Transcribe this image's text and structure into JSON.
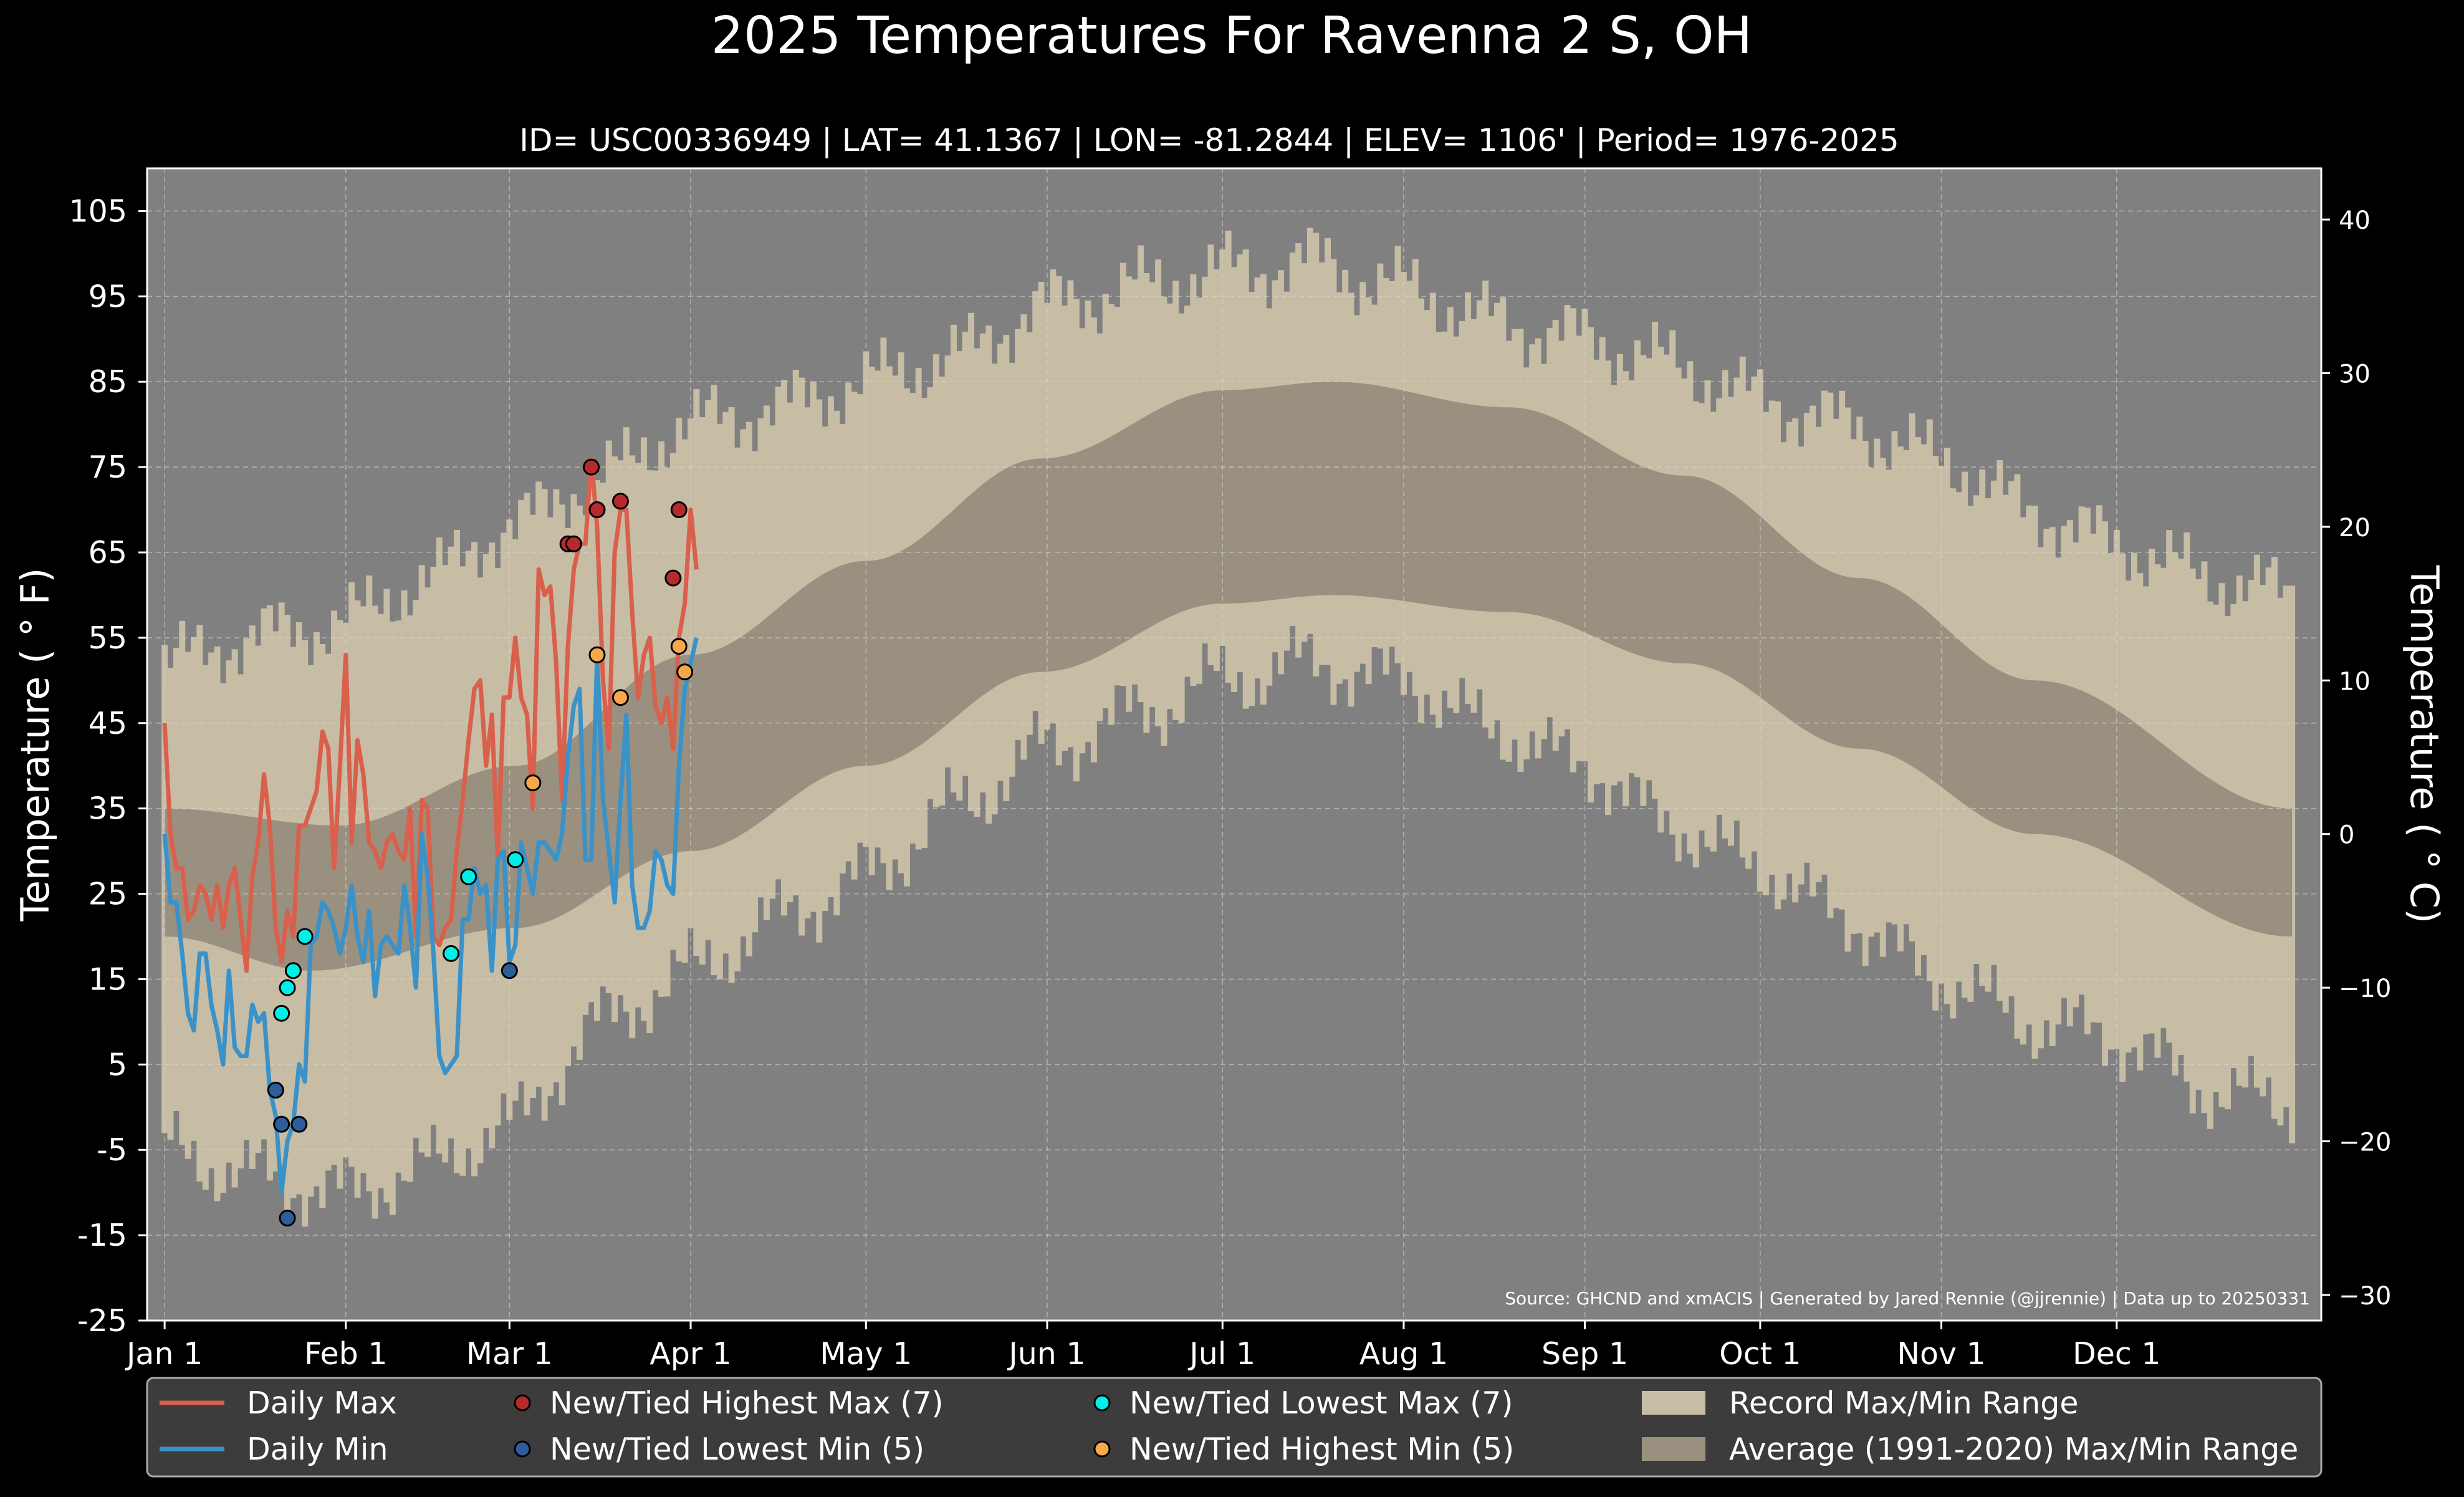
{
  "chart_data": {
    "type": "line",
    "title": "2025 Temperatures For Ravenna 2 S, OH",
    "subtitle": "ID= USC00336949 | LAT= 41.1367 | LON= -81.2844 | ELEV= 1106' | Period= 1976-2025",
    "ylabel": "Temperature ($^\\circ$F)",
    "ylabel_display": "Temperature ( ° F)",
    "ylabel2_display": "Temperature ( ° C)",
    "ylim": [
      -25,
      110
    ],
    "yticks": [
      -25,
      -15,
      -5,
      5,
      15,
      25,
      35,
      45,
      55,
      65,
      75,
      85,
      95,
      105
    ],
    "yticks_c": [
      -30,
      -20,
      -10,
      0,
      10,
      20,
      30,
      40
    ],
    "x_range_days": [
      -3,
      369
    ],
    "xticks": [
      {
        "label": "Jan 1",
        "day": 0
      },
      {
        "label": "Feb 1",
        "day": 31
      },
      {
        "label": "Mar 1",
        "day": 59
      },
      {
        "label": "Apr 1",
        "day": 90
      },
      {
        "label": "May 1",
        "day": 120
      },
      {
        "label": "Jun 1",
        "day": 151
      },
      {
        "label": "Jul 1",
        "day": 181
      },
      {
        "label": "Aug 1",
        "day": 212
      },
      {
        "label": "Sep 1",
        "day": 243
      },
      {
        "label": "Oct 1",
        "day": 273
      },
      {
        "label": "Nov 1",
        "day": 304
      },
      {
        "label": "Dec 1",
        "day": 334
      }
    ],
    "grid": true,
    "legend_position": "bottom",
    "source": "Source: GHCND and xmACIS | Generated by Jared Rennie (@jjrennie) | Data up to 20250331",
    "record_max_anchors": [
      [
        0,
        52
      ],
      [
        15,
        55
      ],
      [
        31,
        57
      ],
      [
        45,
        62
      ],
      [
        59,
        68
      ],
      [
        75,
        74
      ],
      [
        90,
        80
      ],
      [
        105,
        82
      ],
      [
        120,
        85
      ],
      [
        135,
        88
      ],
      [
        151,
        94
      ],
      [
        166,
        96
      ],
      [
        181,
        98
      ],
      [
        196,
        99
      ],
      [
        212,
        96
      ],
      [
        228,
        92
      ],
      [
        243,
        90
      ],
      [
        258,
        87
      ],
      [
        273,
        83
      ],
      [
        288,
        80
      ],
      [
        304,
        76
      ],
      [
        319,
        70
      ],
      [
        334,
        66
      ],
      [
        350,
        62
      ],
      [
        364,
        60
      ]
    ],
    "record_min_anchors": [
      [
        0,
        -5
      ],
      [
        15,
        -8
      ],
      [
        31,
        -10
      ],
      [
        45,
        -7
      ],
      [
        59,
        -2
      ],
      [
        75,
        10
      ],
      [
        90,
        16
      ],
      [
        105,
        22
      ],
      [
        120,
        27
      ],
      [
        135,
        35
      ],
      [
        151,
        42
      ],
      [
        166,
        46
      ],
      [
        181,
        50
      ],
      [
        196,
        52
      ],
      [
        212,
        50
      ],
      [
        228,
        44
      ],
      [
        243,
        40
      ],
      [
        258,
        33
      ],
      [
        273,
        28
      ],
      [
        288,
        22
      ],
      [
        304,
        15
      ],
      [
        319,
        10
      ],
      [
        334,
        8
      ],
      [
        350,
        2
      ],
      [
        364,
        0
      ]
    ],
    "normal_max_anchors": [
      [
        0,
        35
      ],
      [
        30,
        33
      ],
      [
        60,
        40
      ],
      [
        90,
        53
      ],
      [
        120,
        64
      ],
      [
        150,
        76
      ],
      [
        181,
        84
      ],
      [
        200,
        85
      ],
      [
        230,
        82
      ],
      [
        260,
        74
      ],
      [
        290,
        62
      ],
      [
        320,
        50
      ],
      [
        364,
        35
      ]
    ],
    "normal_min_anchors": [
      [
        0,
        20
      ],
      [
        25,
        16
      ],
      [
        60,
        21
      ],
      [
        90,
        30
      ],
      [
        120,
        40
      ],
      [
        150,
        51
      ],
      [
        181,
        59
      ],
      [
        200,
        60
      ],
      [
        230,
        58
      ],
      [
        260,
        52
      ],
      [
        290,
        42
      ],
      [
        320,
        32
      ],
      [
        364,
        20
      ]
    ],
    "series": [
      {
        "name": "Daily Max",
        "color": "#d9604c",
        "values": [
          45,
          32,
          28,
          28,
          22,
          23,
          26,
          25,
          22,
          26,
          21,
          26,
          28,
          22,
          16,
          27,
          31,
          39,
          33,
          21,
          17,
          23,
          20,
          33,
          33,
          35,
          37,
          44,
          42,
          28,
          40,
          53,
          31,
          43,
          39,
          31,
          30,
          28,
          31,
          32,
          30,
          29,
          35,
          20,
          36,
          35,
          20,
          19,
          21,
          22,
          30,
          36,
          43,
          49,
          50,
          40,
          46,
          29,
          48,
          48,
          55,
          48,
          46,
          35,
          63,
          60,
          61,
          52,
          36,
          54,
          63,
          66,
          66,
          76,
          68,
          50,
          42,
          65,
          70,
          70,
          58,
          48,
          53,
          55,
          47,
          45,
          48,
          42,
          55,
          59,
          70,
          63
        ]
      },
      {
        "name": "Daily Min",
        "color": "#3a92c8",
        "values": [
          32,
          24,
          24,
          18,
          11,
          9,
          18,
          18,
          12,
          9,
          5,
          16,
          7,
          6,
          6,
          12,
          10,
          11,
          2,
          -1,
          -10,
          -4,
          -2,
          5,
          3,
          19,
          20,
          24,
          23,
          21,
          18,
          21,
          26,
          20,
          17,
          23,
          13,
          19,
          20,
          19,
          18,
          26,
          21,
          14,
          32,
          27,
          18,
          6,
          4,
          5,
          6,
          22,
          22,
          28,
          25,
          26,
          16,
          29,
          30,
          17,
          19,
          31,
          28,
          25,
          31,
          31,
          30,
          29,
          32,
          41,
          47,
          49,
          29,
          29,
          53,
          36,
          30,
          24,
          36,
          46,
          26,
          21,
          21,
          23,
          30,
          29,
          26,
          25,
          40,
          49,
          52,
          55
        ]
      },
      {
        "name": "New/Tied Highest Max (7)",
        "color": "#b52b2b",
        "points": [
          [
            69,
            66
          ],
          [
            70,
            66
          ],
          [
            73,
            75
          ],
          [
            74,
            70
          ],
          [
            78,
            71
          ],
          [
            87,
            62
          ],
          [
            88,
            70
          ]
        ]
      },
      {
        "name": "New/Tied Lowest Min (5)",
        "color": "#2d5d9a",
        "points": [
          [
            19,
            2
          ],
          [
            20,
            -2
          ],
          [
            21,
            -13
          ],
          [
            23,
            -2
          ],
          [
            59,
            16
          ]
        ]
      },
      {
        "name": "New/Tied Lowest Max (7)",
        "color": "#00f0e8",
        "points": [
          [
            20,
            11
          ],
          [
            21,
            14
          ],
          [
            22,
            16
          ],
          [
            24,
            20
          ],
          [
            49,
            18
          ],
          [
            52,
            27
          ],
          [
            60,
            29
          ]
        ]
      },
      {
        "name": "New/Tied Highest Min (5)",
        "color": "#f7a84d",
        "points": [
          [
            63,
            38
          ],
          [
            74,
            53
          ],
          [
            78,
            48
          ],
          [
            88,
            54
          ],
          [
            89,
            51
          ]
        ]
      }
    ],
    "legend": [
      {
        "label": "Daily Max",
        "kind": "line",
        "color": "#d9604c"
      },
      {
        "label": "New/Tied Highest Max (7)",
        "kind": "dot",
        "color": "#b52b2b"
      },
      {
        "label": "New/Tied Lowest Max (7)",
        "kind": "dot",
        "color": "#00f0e8"
      },
      {
        "label": "Record Max/Min Range",
        "kind": "box",
        "color": "#c7bda5"
      },
      {
        "label": "Daily Min",
        "kind": "line",
        "color": "#3a92c8"
      },
      {
        "label": "New/Tied Lowest Min (5)",
        "kind": "dot",
        "color": "#2d5d9a"
      },
      {
        "label": "New/Tied Highest Min (5)",
        "kind": "dot",
        "color": "#f7a84d"
      },
      {
        "label": "Average (1991-2020) Max/Min Range",
        "kind": "box",
        "color": "#9a9080"
      }
    ],
    "colors": {
      "background": "#000000",
      "plot_bg": "#808080",
      "record_band": "#c7bda5",
      "normal_band": "#9a9080",
      "legend_bg": "#3c3c3c"
    }
  }
}
